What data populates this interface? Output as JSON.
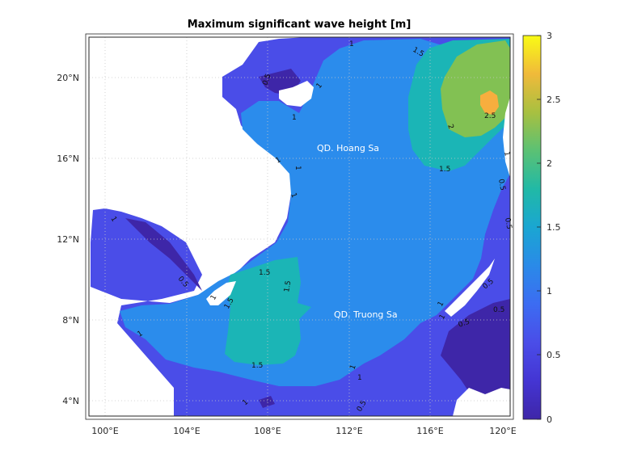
{
  "title": "Maximum significant wave height [m]",
  "axes": {
    "x_ticks": [
      "100°E",
      "104°E",
      "108°E",
      "112°E",
      "116°E",
      "120°E"
    ],
    "y_ticks": [
      "20°N",
      "16°N",
      "12°N",
      "8°N",
      "4°N"
    ]
  },
  "colorbar": {
    "ticks": [
      "3",
      "2.5",
      "2",
      "1.5",
      "1",
      "0.5",
      "0"
    ],
    "range": [
      0,
      3
    ]
  },
  "regions": {
    "hoang_sa": "QD. Hoang Sa",
    "truong_sa": "QD. Truong Sa"
  },
  "contour_labels": [
    "1.5",
    "0.5",
    "1",
    "1",
    "1",
    "2",
    "2.5",
    "1.5",
    "1",
    "1",
    "1",
    "0.5",
    "0.5",
    "1.5",
    "1.5",
    "1",
    "1",
    "1.5",
    "1",
    "0.5",
    "0.5",
    "1",
    "1",
    "0.5",
    "1.5",
    "1",
    "1",
    "1",
    "0.5",
    "1",
    "0.5"
  ],
  "colors": {
    "level_0": "#3e26a8",
    "level_05": "#4a46e8",
    "level_1": "#2b8cec",
    "level_15": "#1bb5b6",
    "level_2": "#82c153",
    "level_25": "#f7ae3e",
    "level_3": "#f9fb15",
    "land": "#ffffff"
  }
}
